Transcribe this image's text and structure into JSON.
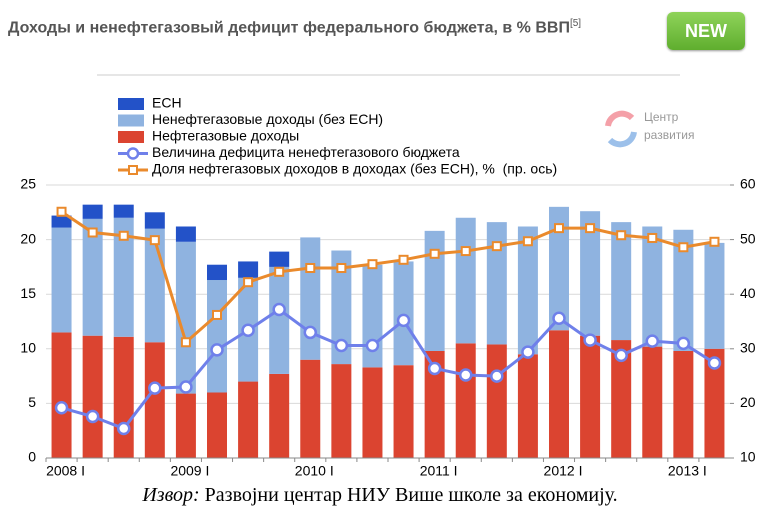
{
  "header": {
    "title": "Доходы и ненефтегазовый дефицит федерального бюджета, в % ВВП",
    "footnote": "[5]",
    "badge": "NEW"
  },
  "logo": [
    "Центр",
    "развития"
  ],
  "chart_data": {
    "type": "bar",
    "categories": [
      "2008 I",
      null,
      null,
      null,
      "2009 I",
      null,
      null,
      null,
      "2010 I",
      null,
      null,
      null,
      "2011 I",
      null,
      null,
      null,
      "2012 I",
      null,
      null,
      null,
      "2013 I",
      null
    ],
    "series": [
      {
        "name": "ЕСН",
        "type": "bar",
        "color": "#2352c8",
        "values": [
          1.1,
          1.3,
          1.2,
          1.5,
          1.4,
          1.4,
          1.5,
          1.4,
          null,
          null,
          null,
          null,
          null,
          null,
          null,
          null,
          null,
          null,
          null,
          null,
          null,
          null
        ]
      },
      {
        "name": "Ненефтегазовые доходы (без ЕСН)",
        "type": "bar",
        "color": "#8fb3e0",
        "values": [
          9.6,
          10.7,
          10.9,
          10.4,
          13.9,
          10.3,
          9.5,
          9.8,
          11.2,
          10.4,
          9.4,
          9.5,
          11.0,
          11.5,
          11.2,
          11.7,
          11.3,
          11.4,
          10.8,
          11.0,
          11.1,
          9.7
        ]
      },
      {
        "name": "Нефтегазовые доходы",
        "type": "bar",
        "color": "#db4430",
        "values": [
          11.5,
          11.2,
          11.1,
          10.6,
          5.9,
          6.0,
          7.0,
          7.7,
          9.0,
          8.6,
          8.3,
          8.5,
          9.8,
          10.5,
          10.4,
          9.5,
          11.7,
          11.2,
          10.8,
          10.2,
          9.8,
          10.0
        ]
      },
      {
        "name": "Величина дефицита ненефтегазового бюджета",
        "type": "line",
        "color": "#6f80ea",
        "values": [
          4.6,
          3.8,
          2.7,
          6.4,
          6.5,
          9.9,
          11.7,
          13.6,
          11.5,
          10.3,
          10.3,
          12.6,
          8.2,
          7.6,
          7.5,
          9.7,
          12.8,
          10.8,
          9.4,
          10.7,
          10.5,
          8.7
        ]
      },
      {
        "name": "Доля нефтегазовых доходов в доходах (без ЕСН), %  (пр. ось)",
        "type": "line",
        "axis": "y2",
        "color": "#ea8a2c",
        "values": [
          55.1,
          51.3,
          50.7,
          49.9,
          31.2,
          36.2,
          42.2,
          44.1,
          44.8,
          44.8,
          45.5,
          46.3,
          47.4,
          47.9,
          48.8,
          49.7,
          52.1,
          52.1,
          50.8,
          50.3,
          48.6,
          49.6
        ]
      }
    ],
    "ylim": [
      0,
      25
    ],
    "yticks": [
      0,
      5,
      10,
      15,
      20,
      25
    ],
    "y2lim": [
      10,
      60
    ],
    "y2ticks": [
      10,
      20,
      30,
      40,
      50,
      60
    ],
    "grid": true,
    "legend": "top-left"
  },
  "caption": {
    "label": "Извор:",
    "text": "Развојни центар НИУ Више школе за економију."
  }
}
